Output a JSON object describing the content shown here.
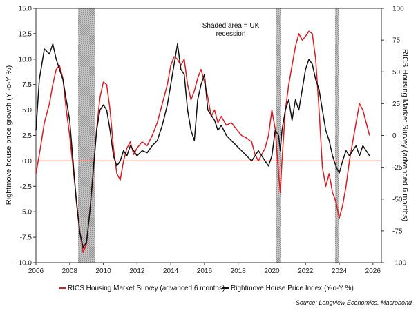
{
  "chart_data": {
    "type": "line",
    "title": "",
    "ylabel_left": "Rightmove house price growth (Y -o-Y %)",
    "ylabel_right": "RICS Housing Market Survey (advanced 6 months)",
    "ylim_left": [
      -10,
      15
    ],
    "ylim_right": [
      -100,
      100
    ],
    "xlim": [
      2006,
      2026.5
    ],
    "x_ticks": [
      "2006",
      "2008",
      "2010",
      "2012",
      "2014",
      "2016",
      "2018",
      "2020",
      "2022",
      "2024",
      "2026"
    ],
    "y_ticks_left": [
      "15.0",
      "12.5",
      "10.0",
      "7.5",
      "5.0",
      "2.5",
      "0.0",
      "-2.5",
      "-5.0",
      "-7.5",
      "-10.0"
    ],
    "y_ticks_right": [
      "100",
      "75",
      "50",
      "25",
      "0",
      "-25",
      "-50",
      "-75",
      "-100"
    ],
    "recessions": [
      [
        2008.5,
        2009.5
      ],
      [
        2020.25,
        2020.55
      ],
      [
        2023.75,
        2024.0
      ]
    ],
    "zero_line_color": "#e8322f",
    "annotation": "Shaded area = UK recession",
    "source": "Source: Longview Economics, Macrobond",
    "series": [
      {
        "name": "RICS Housing Market Survey (advanced 6 months)",
        "axis": "right",
        "color": "#e0191f",
        "x": [
          2006.0,
          2006.2,
          2006.5,
          2006.8,
          2007.0,
          2007.2,
          2007.4,
          2007.6,
          2007.8,
          2008.0,
          2008.2,
          2008.4,
          2008.6,
          2008.8,
          2009.0,
          2009.2,
          2009.4,
          2009.6,
          2009.8,
          2010.0,
          2010.2,
          2010.4,
          2010.6,
          2010.8,
          2011.0,
          2011.2,
          2011.4,
          2011.6,
          2011.8,
          2012.0,
          2012.3,
          2012.6,
          2012.9,
          2013.2,
          2013.5,
          2013.8,
          2014.0,
          2014.2,
          2014.4,
          2014.6,
          2014.8,
          2015.0,
          2015.2,
          2015.4,
          2015.6,
          2015.8,
          2016.0,
          2016.2,
          2016.4,
          2016.6,
          2016.8,
          2017.0,
          2017.3,
          2017.6,
          2017.9,
          2018.2,
          2018.5,
          2018.8,
          2019.0,
          2019.2,
          2019.4,
          2019.6,
          2019.8,
          2020.0,
          2020.2,
          2020.4,
          2020.5,
          2020.6,
          2020.8,
          2021.0,
          2021.2,
          2021.4,
          2021.6,
          2021.8,
          2022.0,
          2022.2,
          2022.4,
          2022.6,
          2022.8,
          2023.0,
          2023.2,
          2023.4,
          2023.6,
          2023.8,
          2024.0,
          2024.2,
          2024.4,
          2024.6,
          2024.8,
          2025.0,
          2025.2,
          2025.4,
          2025.6,
          2025.8
        ],
        "values": [
          -30,
          -15,
          10,
          25,
          40,
          52,
          55,
          45,
          20,
          0,
          -25,
          -50,
          -75,
          -92,
          -85,
          -60,
          -30,
          5,
          30,
          42,
          40,
          20,
          -10,
          -30,
          -35,
          -20,
          -10,
          -5,
          -15,
          -10,
          -5,
          -8,
          0,
          10,
          25,
          40,
          55,
          62,
          60,
          55,
          60,
          40,
          28,
          35,
          45,
          52,
          42,
          30,
          15,
          20,
          10,
          15,
          8,
          10,
          5,
          0,
          -2,
          -5,
          -15,
          -20,
          -15,
          -10,
          0,
          20,
          5,
          -30,
          -45,
          -20,
          20,
          40,
          55,
          70,
          80,
          75,
          78,
          82,
          80,
          60,
          20,
          -25,
          -40,
          -30,
          -45,
          -52,
          -65,
          -55,
          -40,
          -20,
          -5,
          10,
          25,
          20,
          10,
          0
        ]
      },
      {
        "name": "Rightmove House Price Index (Y-o-Y %)",
        "axis": "left",
        "color": "#111111",
        "x": [
          2006.0,
          2006.2,
          2006.5,
          2006.8,
          2007.0,
          2007.2,
          2007.4,
          2007.6,
          2007.8,
          2008.0,
          2008.2,
          2008.4,
          2008.6,
          2008.8,
          2009.0,
          2009.2,
          2009.4,
          2009.6,
          2009.8,
          2010.0,
          2010.2,
          2010.4,
          2010.6,
          2010.8,
          2011.0,
          2011.2,
          2011.4,
          2011.6,
          2011.8,
          2012.0,
          2012.3,
          2012.6,
          2012.9,
          2013.2,
          2013.5,
          2013.8,
          2014.0,
          2014.2,
          2014.4,
          2014.6,
          2014.8,
          2015.0,
          2015.2,
          2015.4,
          2015.6,
          2015.8,
          2016.0,
          2016.2,
          2016.4,
          2016.6,
          2016.8,
          2017.0,
          2017.3,
          2017.6,
          2017.9,
          2018.2,
          2018.5,
          2018.8,
          2019.0,
          2019.2,
          2019.4,
          2019.6,
          2019.8,
          2020.0,
          2020.2,
          2020.4,
          2020.5,
          2020.6,
          2020.8,
          2021.0,
          2021.2,
          2021.4,
          2021.6,
          2021.8,
          2022.0,
          2022.2,
          2022.4,
          2022.6,
          2022.8,
          2023.0,
          2023.2,
          2023.4,
          2023.6,
          2023.8,
          2024.0,
          2024.2,
          2024.4,
          2024.6,
          2024.8,
          2025.0,
          2025.2,
          2025.4,
          2025.6,
          2025.8
        ],
        "values": [
          3,
          8,
          11,
          10.5,
          11.5,
          10,
          9,
          8,
          6,
          4,
          0,
          -4,
          -7,
          -8.5,
          -8,
          -5,
          -1,
          3,
          5,
          5.5,
          5,
          3,
          0.5,
          -0.5,
          0,
          1,
          0.5,
          1.5,
          1,
          0.5,
          1,
          0.8,
          1.5,
          2,
          3.5,
          5.5,
          7.5,
          9.5,
          11.5,
          9,
          8.5,
          5,
          3,
          2,
          6,
          7.5,
          8.5,
          5,
          4.5,
          4,
          3,
          3.5,
          2.5,
          2,
          1.5,
          1,
          0.5,
          0,
          0.5,
          1,
          0.5,
          0,
          -0.5,
          0.5,
          3,
          2.5,
          1,
          3,
          5,
          6,
          4,
          6,
          5,
          7,
          9,
          10,
          9.5,
          8,
          7,
          5,
          3,
          2,
          0.5,
          -0.5,
          -1.2,
          0,
          1,
          0.5,
          1,
          1.5,
          0.5,
          1.5,
          1,
          0.5
        ]
      }
    ],
    "legend": [
      {
        "label": "RICS Housing Market Survey (advanced 6 months)",
        "color": "#e0191f"
      },
      {
        "label": "Rightmove House Price Index (Y-o-Y %)",
        "color": "#111111"
      }
    ]
  }
}
